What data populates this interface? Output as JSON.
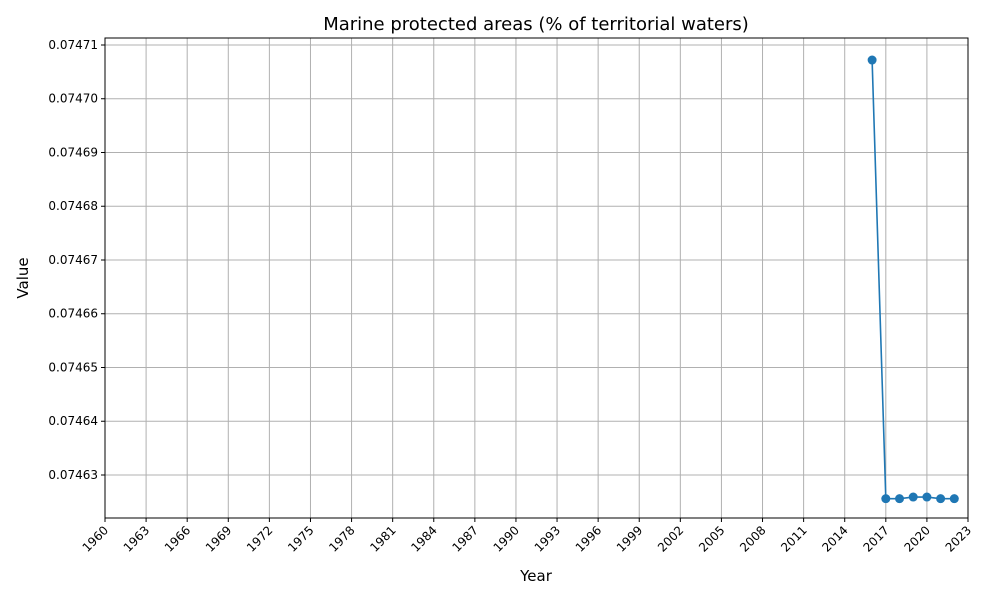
{
  "chart_data": {
    "type": "line",
    "title": "Marine protected areas (% of territorial waters)",
    "xlabel": "Year",
    "ylabel": "Value",
    "xlim": [
      1960,
      2023
    ],
    "ylim": [
      0.074622,
      0.0747113
    ],
    "x_ticks": [
      "1960",
      "1963",
      "1966",
      "1969",
      "1972",
      "1975",
      "1978",
      "1981",
      "1984",
      "1987",
      "1990",
      "1993",
      "1996",
      "1999",
      "2002",
      "2005",
      "2008",
      "2011",
      "2014",
      "2017",
      "2020",
      "2023"
    ],
    "y_ticks": [
      "0.07463",
      "0.07464",
      "0.07465",
      "0.07466",
      "0.07467",
      "0.07468",
      "0.07469",
      "0.07470",
      "0.07471"
    ],
    "grid": true,
    "series": [
      {
        "color": "#1f77b4",
        "marker": "circle",
        "x": [
          2016,
          2017,
          2018,
          2019,
          2020,
          2021,
          2022
        ],
        "values": [
          0.0747072,
          0.0746256,
          0.0746256,
          0.0746259,
          0.0746259,
          0.0746256,
          0.0746256
        ]
      }
    ]
  }
}
